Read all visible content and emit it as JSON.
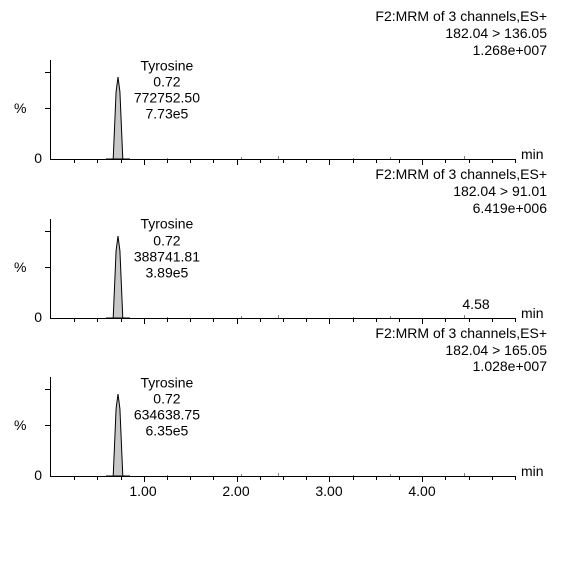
{
  "figure": {
    "background_color": "#ffffff",
    "text_color": "#000000",
    "font_family": "Arial",
    "font_size_pt": 11,
    "x_axis": {
      "unit": "min",
      "xlim": [
        0,
        5.0
      ],
      "major_ticks": [
        1.0,
        2.0,
        3.0,
        4.0
      ],
      "tick_labels": [
        "1.00",
        "2.00",
        "3.00",
        "4.00"
      ],
      "minor_tick_interval": 0.25
    },
    "y_axis": {
      "label": "%",
      "zero_label": "0"
    },
    "peak_style": {
      "fill": "#c8c8c8",
      "stroke": "#000000",
      "stroke_width": 1
    },
    "panels": [
      {
        "header": {
          "line1": "F2:MRM of 3 channels,ES+",
          "line2": "182.04 > 136.05",
          "line3": "1.268e+007"
        },
        "peak": {
          "name": "Tyrosine",
          "rt": "0.72",
          "area": "772752.50",
          "height": "7.73e5",
          "rt_x": 0.72,
          "peak_height_pct": 82,
          "half_width_min": 0.06
        },
        "show_x_labels": false,
        "extra_labels": []
      },
      {
        "header": {
          "line1": "F2:MRM of 3 channels,ES+",
          "line2": "182.04 > 91.01",
          "line3": "6.419e+006"
        },
        "peak": {
          "name": "Tyrosine",
          "rt": "0.72",
          "area": "388741.81",
          "height": "3.89e5",
          "rt_x": 0.72,
          "peak_height_pct": 82,
          "half_width_min": 0.06
        },
        "show_x_labels": false,
        "extra_labels": [
          {
            "text": "4.58",
            "x": 4.58
          }
        ]
      },
      {
        "header": {
          "line1": "F2:MRM of 3 channels,ES+",
          "line2": "182.04 > 165.05",
          "line3": "1.028e+007"
        },
        "peak": {
          "name": "Tyrosine",
          "rt": "0.72",
          "area": "634638.75",
          "height": "6.35e5",
          "rt_x": 0.72,
          "peak_height_pct": 82,
          "half_width_min": 0.06
        },
        "show_x_labels": true,
        "extra_labels": []
      }
    ]
  }
}
